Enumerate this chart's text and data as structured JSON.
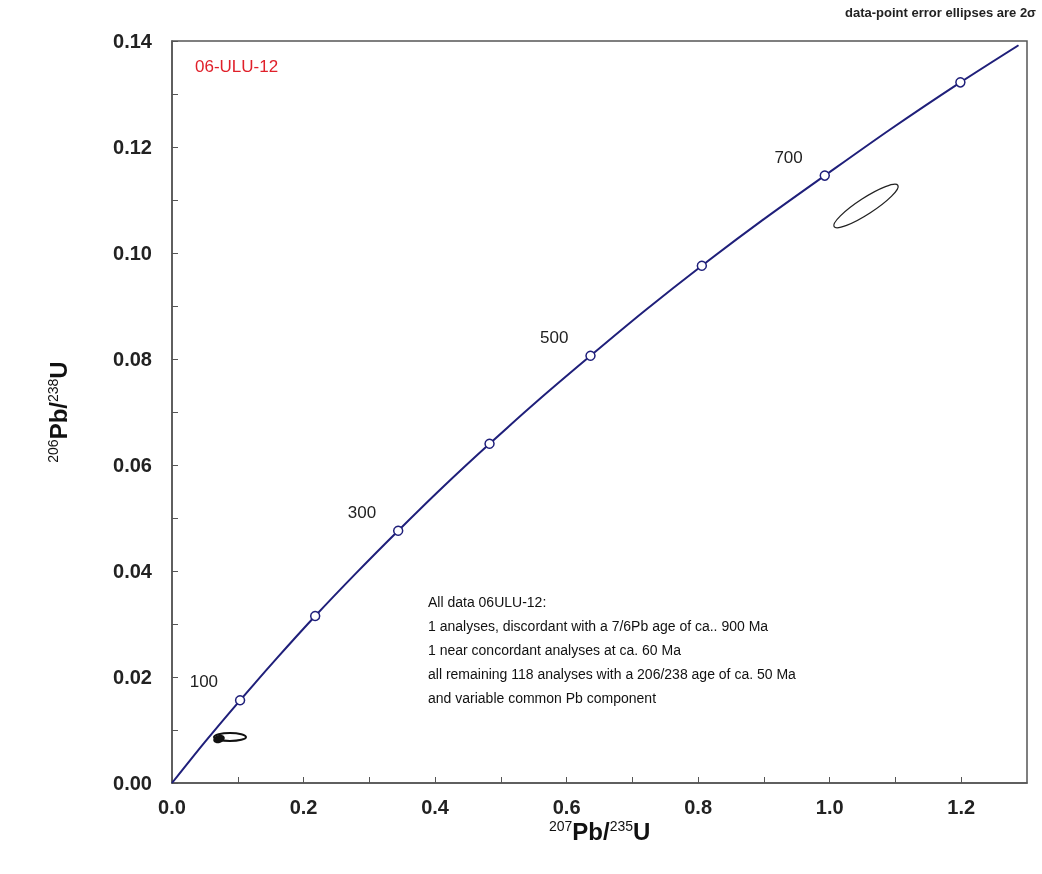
{
  "chart_data": {
    "type": "line",
    "xlabel": "$^{207}$Pb/$^{235}$U",
    "ylabel": "$^{206}$Pb/$^{238}$U",
    "xlim": [
      0,
      1.3
    ],
    "ylim": [
      0,
      0.14
    ],
    "xticks": [
      {
        "value": 0,
        "label": "0.0"
      },
      {
        "value": 0.1,
        "label": null
      },
      {
        "value": 0.2,
        "label": "0.2"
      },
      {
        "value": 0.3,
        "label": null
      },
      {
        "value": 0.4,
        "label": "0.4"
      },
      {
        "value": 0.5,
        "label": null
      },
      {
        "value": 0.6,
        "label": "0.6"
      },
      {
        "value": 0.7,
        "label": null
      },
      {
        "value": 0.8,
        "label": "0.8"
      },
      {
        "value": 0.9,
        "label": null
      },
      {
        "value": 1.0,
        "label": "1.0"
      },
      {
        "value": 1.1,
        "label": null
      },
      {
        "value": 1.2,
        "label": "1.2"
      }
    ],
    "yticks": [
      {
        "value": 0,
        "label": "0.00"
      },
      {
        "value": 0.01,
        "label": null
      },
      {
        "value": 0.02,
        "label": "0.02"
      },
      {
        "value": 0.03,
        "label": null
      },
      {
        "value": 0.04,
        "label": "0.04"
      },
      {
        "value": 0.05,
        "label": null
      },
      {
        "value": 0.06,
        "label": "0.06"
      },
      {
        "value": 0.07,
        "label": null
      },
      {
        "value": 0.08,
        "label": "0.08"
      },
      {
        "value": 0.09,
        "label": null
      },
      {
        "value": 0.1,
        "label": "0.10"
      },
      {
        "value": 0.11,
        "label": null
      },
      {
        "value": 0.12,
        "label": "0.12"
      },
      {
        "value": 0.13,
        "label": null
      },
      {
        "value": 0.14,
        "label": "0.14"
      }
    ],
    "grid": false,
    "line_style": "solid",
    "series": [
      {
        "color": "#1f1f7a",
        "x": [
          0,
          0.0505,
          0.1035,
          0.1592,
          0.2177,
          0.2792,
          0.3439,
          0.4116,
          0.4828,
          0.5577,
          0.6363,
          0.7188,
          0.8056,
          0.8968,
          0.9925,
          1.093,
          1.1987,
          1.2871
        ],
        "values": [
          0,
          0.0078,
          0.0156,
          0.0235,
          0.0315,
          0.0395,
          0.0476,
          0.0558,
          0.064,
          0.0723,
          0.0806,
          0.0891,
          0.0976,
          0.1061,
          0.1146,
          0.1234,
          0.1322,
          0.1392
        ]
      },
      {
        "type": "scatter",
        "marker": "circle",
        "color": "#1f1f7a",
        "x": [
          0.1035,
          0.2177,
          0.3439,
          0.4828,
          0.6363,
          0.8056,
          0.9925,
          1.1987
        ],
        "values": [
          0.0156,
          0.0315,
          0.0476,
          0.064,
          0.0806,
          0.0976,
          0.1146,
          0.1322
        ]
      }
    ],
    "annotations": [
      "data-point error ellipses are 2σ",
      "06-ULU-12",
      "All data 06ULU-12:\n1 analyses, discordant with a 7/6Pb age of ca.. 900 Ma\n1 near concordant analyses at ca. 60 Ma\nall remaining 118 analyses with a 206/238 age of ca. 50 Ma\nand variable common Pb component",
      {
        "text": "100",
        "x": 0.1035,
        "y": 0.0156
      },
      {
        "text": "300",
        "x": 0.3439,
        "y": 0.0476
      },
      {
        "text": "500",
        "x": 0.6363,
        "y": 0.0806
      },
      {
        "text": "700",
        "x": 0.9925,
        "y": 0.1146
      }
    ]
  }
}
